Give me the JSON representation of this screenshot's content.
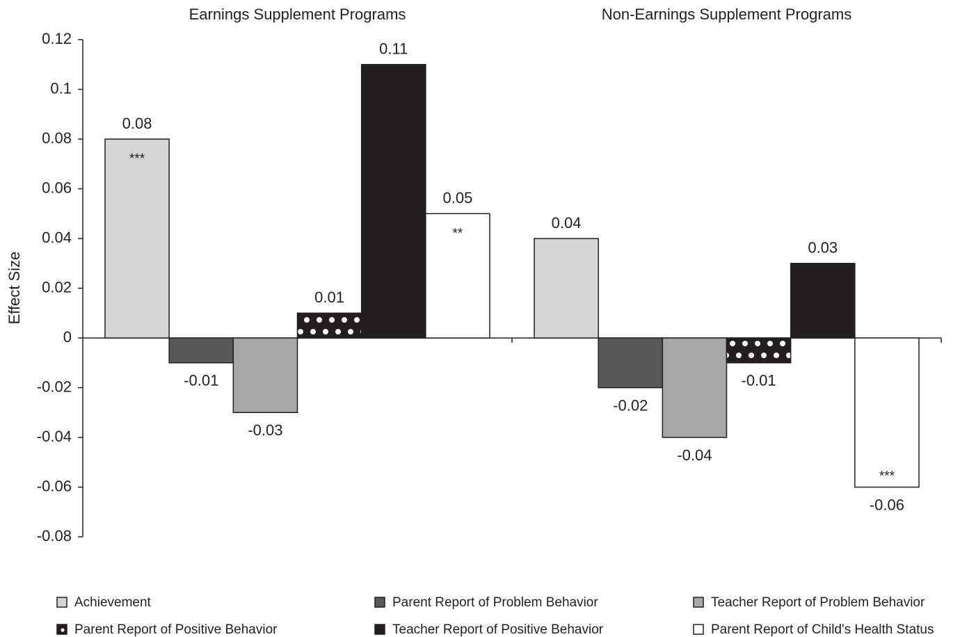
{
  "chart_data": {
    "type": "bar",
    "ylabel": "Effect Size",
    "categories": [
      "Earnings Supplement Programs",
      "Non-Earnings Supplement Programs"
    ],
    "ylim": [
      -0.08,
      0.12
    ],
    "yticks": [
      -0.08,
      -0.06,
      -0.04,
      -0.02,
      0,
      0.02,
      0.04,
      0.06,
      0.08,
      0.1,
      0.12
    ],
    "legend": "bottom",
    "series": [
      {
        "name": "Achievement",
        "color": "#d4d5d6",
        "values": [
          0.08,
          0.04
        ],
        "annotations": [
          "***",
          null
        ]
      },
      {
        "name": "Parent Report of Problem Behavior",
        "color": "#58595b",
        "values": [
          -0.01,
          -0.02
        ]
      },
      {
        "name": "Teacher Report of Problem Behavior",
        "color": "#a6a7a9",
        "values": [
          -0.03,
          -0.04
        ]
      },
      {
        "name": "Parent Report of Positive Behavior",
        "color": "#231f20",
        "pattern": "dots",
        "values": [
          0.01,
          -0.01
        ]
      },
      {
        "name": "Teacher Report of Positive Behavior",
        "color": "#231f20",
        "values": [
          0.11,
          0.03
        ]
      },
      {
        "name": "Parent Report of Child's Health Status",
        "color": "#ffffff",
        "values": [
          0.05,
          -0.06
        ],
        "annotations": [
          "**",
          "***"
        ]
      }
    ]
  }
}
